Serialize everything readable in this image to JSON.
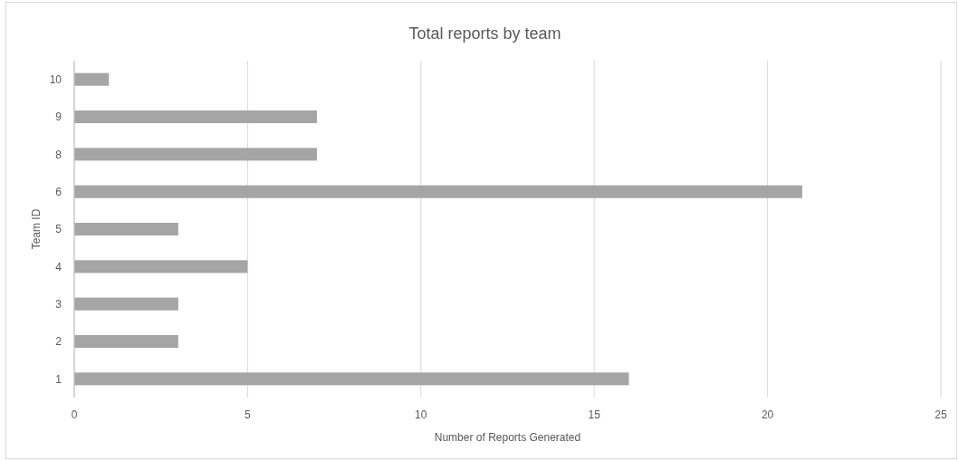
{
  "chart_data": {
    "type": "bar",
    "orientation": "horizontal",
    "title": "Total reports by team",
    "xlabel": "Number of Reports Generated",
    "ylabel": "Team ID",
    "categories": [
      "10",
      "9",
      "8",
      "6",
      "5",
      "4",
      "3",
      "2",
      "1"
    ],
    "values": [
      1,
      7,
      7,
      21,
      3,
      5,
      3,
      3,
      16
    ],
    "color": "#a5a5a5",
    "xlim": [
      0,
      25
    ],
    "xticks": [
      0,
      5,
      10,
      15,
      20,
      25
    ],
    "grid": "x"
  }
}
